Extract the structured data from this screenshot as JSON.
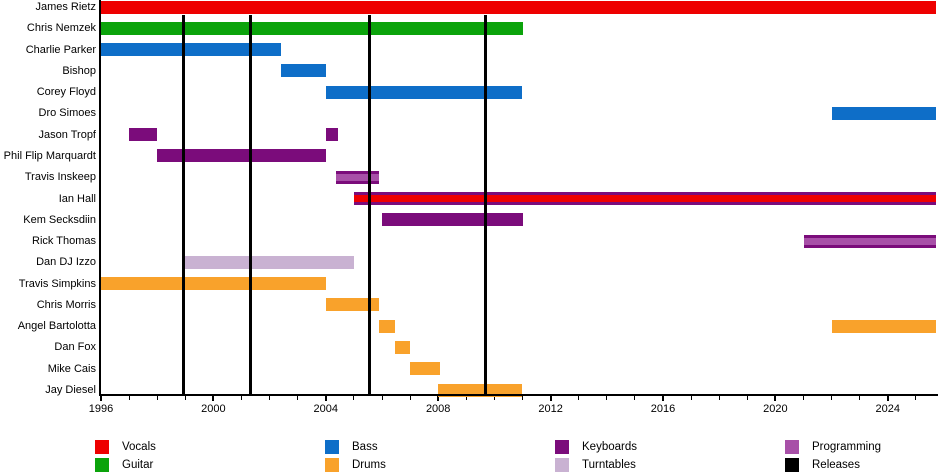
{
  "chart_data": {
    "type": "timeline",
    "description": "Band membership timeline (gantt-style), instrument tenure per member",
    "x_axis": {
      "start": 1996,
      "end": 2025.7,
      "major_tick_labels": [
        "1996",
        "2000",
        "2004",
        "2008",
        "2012",
        "2016",
        "2020",
        "2024"
      ],
      "major_tick_interval": 4,
      "minor_tick_interval": 1,
      "grid": "off",
      "legend_position": "bottom"
    },
    "colors": {
      "vocals": "#ee0000",
      "guitar": "#0ba30b",
      "bass": "#0e6ec8",
      "drums": "#f9a22b",
      "keyboards": "#7b0c7b",
      "turntables": "#c9b2d2",
      "programming": "#a850a8",
      "releases": "#000000"
    },
    "legend": [
      {
        "label": "Vocals",
        "role": "vocals"
      },
      {
        "label": "Guitar",
        "role": "guitar"
      },
      {
        "label": "Bass",
        "role": "bass"
      },
      {
        "label": "Drums",
        "role": "drums"
      },
      {
        "label": "Keyboards",
        "role": "keyboards"
      },
      {
        "label": "Turntables",
        "role": "turntables"
      },
      {
        "label": "Programming",
        "role": "programming"
      },
      {
        "label": "Releases",
        "role": "releases"
      }
    ],
    "releases_years": [
      1998.95,
      2001.32,
      2005.56,
      2009.7
    ],
    "rows": [
      {
        "label": "James Rietz",
        "segments": [
          {
            "role": "vocals",
            "start": 1996,
            "end": "present"
          }
        ]
      },
      {
        "label": "Chris Nemzek",
        "segments": [
          {
            "role": "guitar",
            "start": 1996,
            "end": 2011
          }
        ]
      },
      {
        "label": "Charlie Parker",
        "segments": [
          {
            "role": "bass",
            "start": 1996,
            "end": 2002.4
          }
        ]
      },
      {
        "label": "Bishop",
        "segments": [
          {
            "role": "bass",
            "start": 2002.4,
            "end": 2004
          }
        ]
      },
      {
        "label": "Corey Floyd",
        "segments": [
          {
            "role": "bass",
            "start": 2004,
            "end": 2011
          }
        ]
      },
      {
        "label": "Dro Simoes",
        "segments": [
          {
            "role": "bass",
            "start": 2022,
            "end": "present"
          }
        ]
      },
      {
        "label": "Jason Tropf",
        "segments": [
          {
            "role": "keyboards",
            "start": 1997,
            "end": 1998
          },
          {
            "role": "keyboards",
            "start": 2004,
            "end": 2004.45
          }
        ]
      },
      {
        "label": "Phil Flip Marquardt",
        "segments": [
          {
            "role": "keyboards",
            "start": 1998,
            "end": 2004
          }
        ]
      },
      {
        "label": "Travis Inskeep",
        "segments": [
          {
            "role": "keyboards",
            "start": 2004.35,
            "end": 2005.9
          },
          {
            "role": "programming",
            "start": 2004.35,
            "end": 2005.9,
            "overlay": true
          }
        ]
      },
      {
        "label": "Ian Hall",
        "segments": [
          {
            "role": "keyboards",
            "start": 2005,
            "end": "present"
          },
          {
            "role": "vocals",
            "start": 2005,
            "end": "present",
            "overlay": true
          }
        ]
      },
      {
        "label": "Kem Secksdiin",
        "segments": [
          {
            "role": "keyboards",
            "start": 2006,
            "end": 2011
          }
        ]
      },
      {
        "label": "Rick Thomas",
        "segments": [
          {
            "role": "keyboards",
            "start": 2021,
            "end": "present"
          },
          {
            "role": "programming",
            "start": 2021,
            "end": "present",
            "overlay": true
          }
        ]
      },
      {
        "label": "Dan DJ Izzo",
        "segments": [
          {
            "role": "turntables",
            "start": 1999,
            "end": 2005
          }
        ]
      },
      {
        "label": "Travis Simpkins",
        "segments": [
          {
            "role": "drums",
            "start": 1996,
            "end": 2004
          }
        ]
      },
      {
        "label": "Chris Morris",
        "segments": [
          {
            "role": "drums",
            "start": 2004,
            "end": 2005.9
          }
        ]
      },
      {
        "label": "Angel Bartolotta",
        "segments": [
          {
            "role": "drums",
            "start": 2005.9,
            "end": 2006.45
          },
          {
            "role": "drums",
            "start": 2022,
            "end": "present"
          }
        ]
      },
      {
        "label": "Dan Fox",
        "segments": [
          {
            "role": "drums",
            "start": 2006.45,
            "end": 2007
          }
        ]
      },
      {
        "label": "Mike Cais",
        "segments": [
          {
            "role": "drums",
            "start": 2007,
            "end": 2008.05
          }
        ]
      },
      {
        "label": "Jay Diesel",
        "segments": [
          {
            "role": "drums",
            "start": 2008,
            "end": 2011
          }
        ]
      }
    ]
  }
}
